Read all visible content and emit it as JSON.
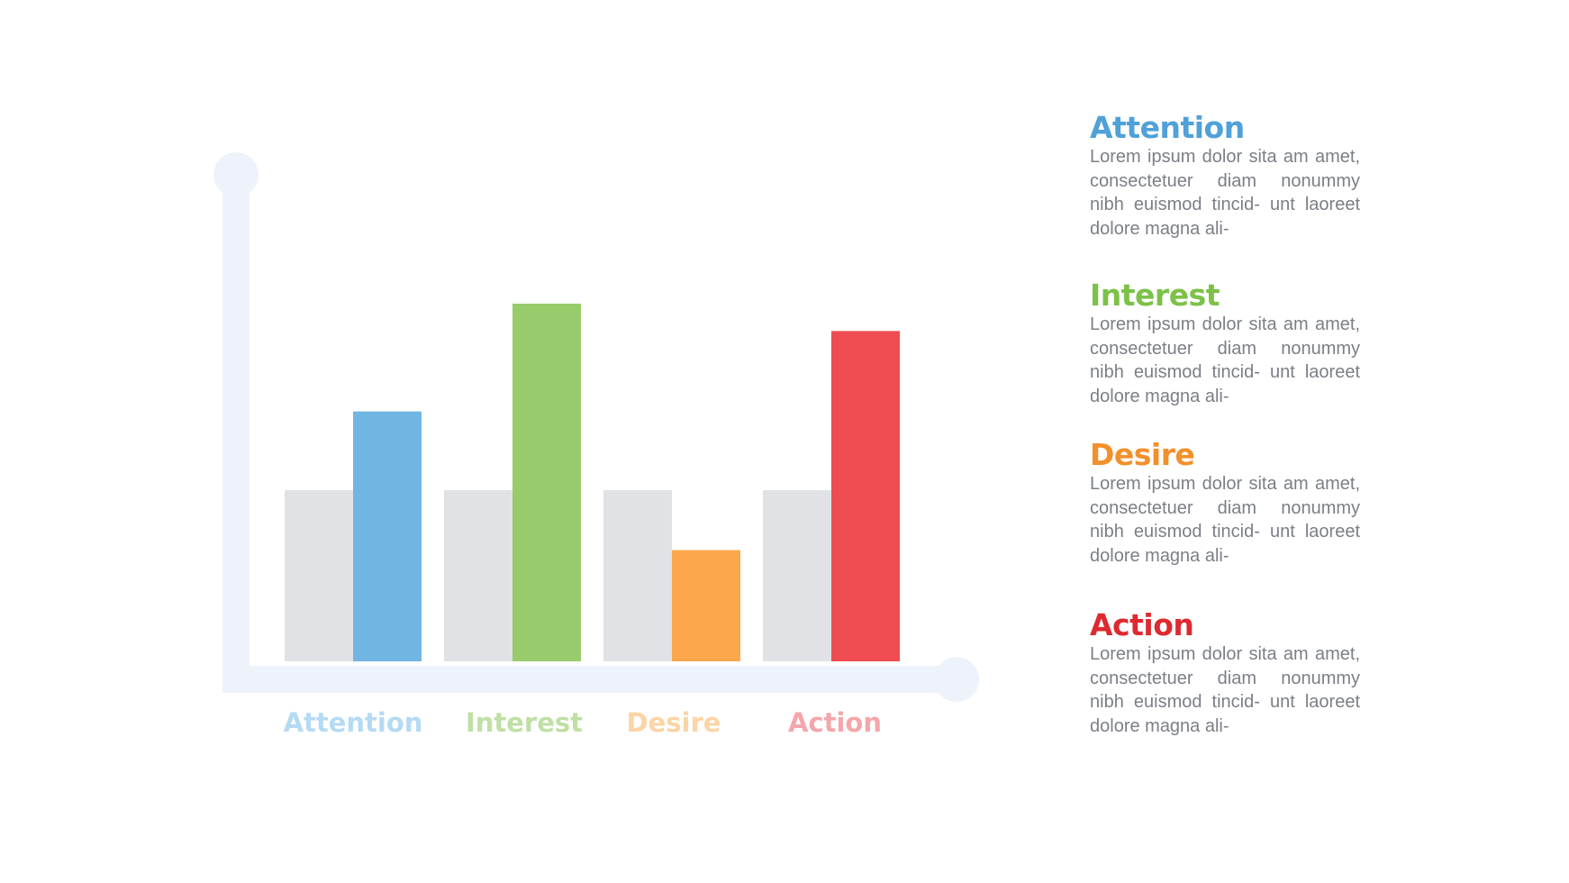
{
  "chart_data": {
    "type": "bar",
    "categories": [
      "Attention",
      "Interest",
      "Desire",
      "Action"
    ],
    "series": [
      {
        "values": [
          100,
          100,
          100,
          100
        ],
        "color": "#e0e2e6"
      },
      {
        "values": [
          146,
          209,
          65,
          193
        ],
        "colors": [
          "#71b5e3",
          "#97cb6b",
          "#fba74b",
          "#ee4c51"
        ]
      }
    ],
    "category_label_colors": [
      "#b5daf4",
      "#bfe0a4",
      "#fcd4a6",
      "#f5a6aa"
    ],
    "axis_color": "#eef2fb",
    "ylim": [
      0,
      209
    ],
    "grid": false,
    "title": "",
    "xlabel": "",
    "ylabel": ""
  },
  "legend": {
    "items": [
      {
        "title": "Attention",
        "color": "#4fa1d8",
        "lines": [
          "Lorem ipsum dolor sita",
          "am amet, consectetuer diam",
          "nonummy nibh euismod tincid-",
          "unt laoreet dolore magna ali-"
        ]
      },
      {
        "title": "Interest",
        "color": "#7cc148",
        "lines": [
          "Lorem ipsum dolor sita",
          "am amet, consectetuer diam",
          "nonummy nibh euismod tincid-",
          "unt laoreet dolore magna ali-"
        ]
      },
      {
        "title": "Desire",
        "color": "#f3902b",
        "lines": [
          "Lorem ipsum dolor sita",
          "am amet, consectetuer diam",
          "nonummy nibh euismod tincid-",
          "unt laoreet dolore magna ali-"
        ]
      },
      {
        "title": "Action",
        "color": "#dd2a30",
        "lines": [
          "Lorem ipsum dolor sita",
          "am amet, consectetuer diam",
          "nonummy nibh euismod tincid-",
          "unt laoreet dolore magna ali-"
        ]
      }
    ]
  }
}
